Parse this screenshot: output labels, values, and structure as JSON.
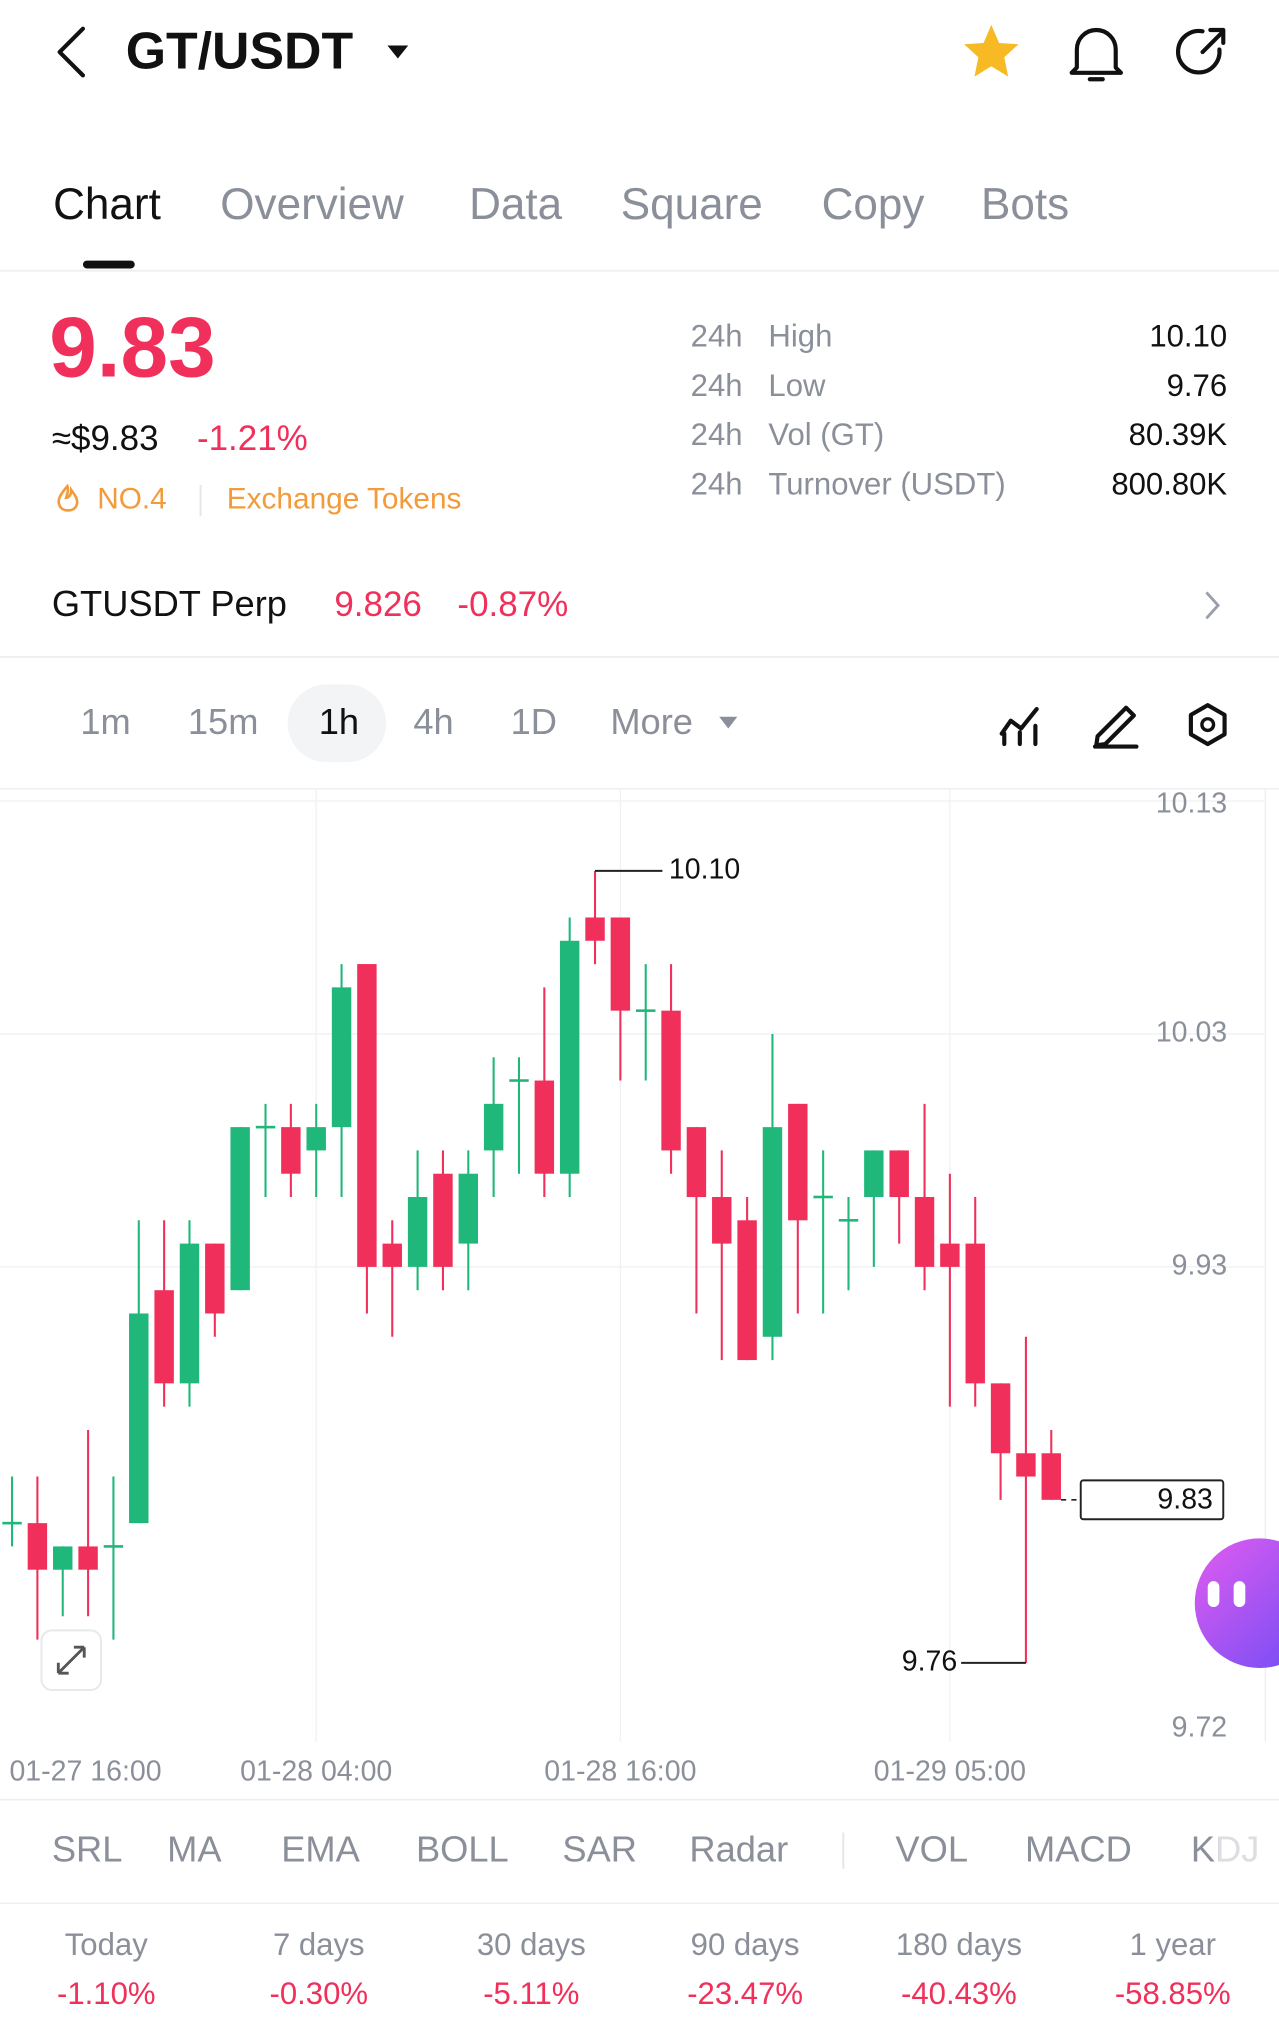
{
  "header": {
    "pair": "GT/USDT"
  },
  "tabs": [
    "Chart",
    "Overview",
    "Data",
    "Square",
    "Copy",
    "Bots"
  ],
  "price": {
    "last": "9.83",
    "usd": "≈$9.83",
    "change": "-1.21%",
    "rank": "NO.4",
    "category": "Exchange Tokens"
  },
  "stats": [
    {
      "period": "24h",
      "name": "High",
      "value": "10.10"
    },
    {
      "period": "24h",
      "name": "Low",
      "value": "9.76"
    },
    {
      "period": "24h",
      "name": "Vol (GT)",
      "value": "80.39K"
    },
    {
      "period": "24h",
      "name": "Turnover (USDT)",
      "value": "800.80K"
    }
  ],
  "perp": {
    "name": "GTUSDT Perp",
    "price": "9.826",
    "change": "-0.87%"
  },
  "intervals": [
    "1m",
    "15m",
    "1h",
    "4h",
    "1D",
    "More"
  ],
  "chart_data": {
    "type": "candlestick",
    "categories": [
      "01-27 16:00",
      null,
      null,
      null,
      null,
      null,
      null,
      null,
      null,
      null,
      null,
      null,
      "01-28 04:00",
      null,
      null,
      null,
      null,
      null,
      null,
      null,
      null,
      null,
      null,
      null,
      "01-28 16:00",
      null,
      null,
      null,
      null,
      null,
      null,
      null,
      null,
      null,
      null,
      null,
      null,
      "01-29 05:00",
      null,
      null,
      null,
      null
    ],
    "open": [
      9.82,
      9.82,
      9.8,
      9.81,
      9.81,
      9.82,
      9.92,
      9.88,
      9.94,
      9.92,
      9.99,
      9.99,
      9.98,
      9.99,
      10.06,
      9.94,
      9.93,
      9.97,
      9.94,
      9.98,
      10.01,
      10.01,
      9.97,
      10.08,
      10.08,
      10.04,
      10.04,
      9.99,
      9.96,
      9.95,
      9.9,
      10.0,
      9.96,
      9.95,
      9.96,
      9.98,
      9.96,
      9.94,
      9.94,
      9.88,
      9.85,
      9.85
    ],
    "high": [
      9.84,
      9.84,
      9.81,
      9.86,
      9.84,
      9.95,
      9.95,
      9.95,
      9.94,
      9.99,
      10.0,
      10.0,
      10.0,
      10.06,
      10.06,
      9.95,
      9.98,
      9.98,
      9.98,
      10.02,
      10.02,
      10.05,
      10.08,
      10.1,
      10.08,
      10.06,
      10.06,
      9.99,
      9.98,
      9.96,
      10.03,
      10.0,
      9.98,
      9.96,
      9.98,
      9.98,
      10.0,
      9.97,
      9.96,
      9.88,
      9.9,
      9.86
    ],
    "low": [
      9.81,
      9.77,
      9.78,
      9.78,
      9.77,
      9.82,
      9.87,
      9.87,
      9.9,
      9.92,
      9.96,
      9.96,
      9.96,
      9.96,
      9.91,
      9.9,
      9.92,
      9.92,
      9.92,
      9.96,
      9.97,
      9.96,
      9.96,
      10.06,
      10.01,
      10.01,
      9.97,
      9.91,
      9.89,
      9.89,
      9.89,
      9.91,
      9.91,
      9.92,
      9.93,
      9.94,
      9.92,
      9.87,
      9.87,
      9.83,
      9.76,
      9.83
    ],
    "close": [
      9.82,
      9.8,
      9.81,
      9.8,
      9.81,
      9.91,
      9.88,
      9.94,
      9.91,
      9.99,
      9.99,
      9.97,
      9.99,
      10.05,
      9.93,
      9.93,
      9.96,
      9.93,
      9.97,
      10.0,
      10.01,
      9.97,
      10.07,
      10.07,
      10.04,
      10.04,
      9.98,
      9.96,
      9.94,
      9.89,
      9.99,
      9.95,
      9.96,
      9.95,
      9.98,
      9.96,
      9.93,
      9.93,
      9.88,
      9.85,
      9.84,
      9.83
    ],
    "up_color": "#1fb87a",
    "down_color": "#f0305a",
    "ylim": [
      9.72,
      10.14
    ],
    "yticks": [
      10.13,
      10.03,
      9.93,
      9.72
    ],
    "grid": true,
    "high_marker": {
      "value": 10.1,
      "label": "10.10"
    },
    "low_marker": {
      "value": 9.76,
      "label": "9.76"
    },
    "last_price": {
      "value": 9.83,
      "label": "9.83"
    }
  },
  "indicators": [
    "SRL",
    "MA",
    "EMA",
    "BOLL",
    "SAR",
    "Radar",
    "VOL",
    "MACD",
    "KDJ"
  ],
  "performance": [
    {
      "period": "Today",
      "change": "-1.10%"
    },
    {
      "period": "7 days",
      "change": "-0.30%"
    },
    {
      "period": "30 days",
      "change": "-5.11%"
    },
    {
      "period": "90 days",
      "change": "-23.47%"
    },
    {
      "period": "180 days",
      "change": "-40.43%"
    },
    {
      "period": "1 year",
      "change": "-58.85%"
    }
  ]
}
